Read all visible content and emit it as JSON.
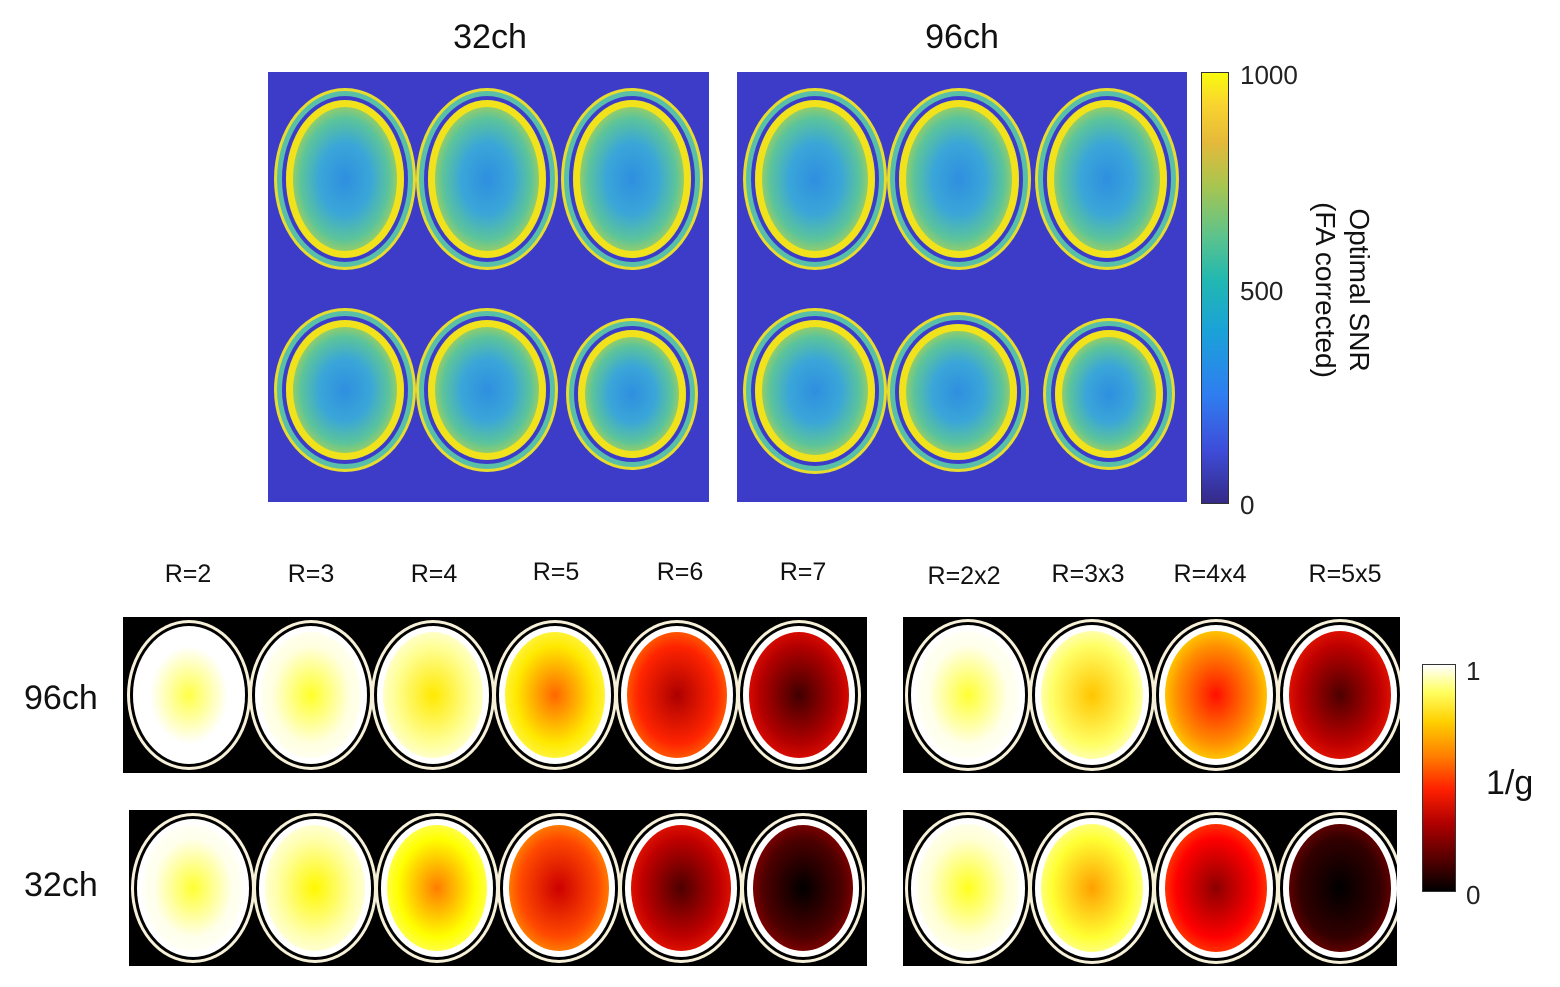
{
  "top": {
    "panels": [
      {
        "title": "32ch"
      },
      {
        "title": "96ch"
      }
    ],
    "colorbar": {
      "ticks": [
        "1000",
        "500",
        "0"
      ],
      "label_line1": "Optimal SNR",
      "label_line2": "(FA corrected)",
      "colormap": "parula"
    }
  },
  "bottom": {
    "column_labels_1d": [
      "R=2",
      "R=3",
      "R=4",
      "R=5",
      "R=6",
      "R=7"
    ],
    "column_labels_2d": [
      "R=2x2",
      "R=3x3",
      "R=4x4",
      "R=5x5"
    ],
    "row_labels": [
      "96ch",
      "32ch"
    ],
    "rows": [
      {
        "name": "96ch",
        "fills_1d": [
          1.0,
          0.97,
          0.9,
          0.72,
          0.45,
          0.28
        ],
        "fills_2d": [
          0.98,
          0.85,
          0.6,
          0.3
        ]
      },
      {
        "name": "32ch",
        "fills_1d": [
          0.98,
          0.92,
          0.75,
          0.5,
          0.3,
          0.12
        ],
        "fills_2d": [
          0.96,
          0.8,
          0.4,
          0.08
        ]
      }
    ],
    "colorbar": {
      "ticks": [
        "1",
        "0"
      ],
      "label": "1/g",
      "colormap": "hot"
    }
  }
}
